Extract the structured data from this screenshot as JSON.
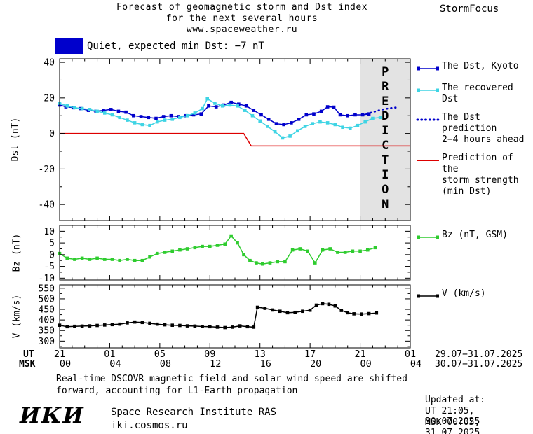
{
  "header": {
    "title_line1": "Forecast of geomagnetic storm and Dst index",
    "title_line2": "for the next several hours",
    "title_line3": "www.spaceweather.ru",
    "brand": "StormFocus"
  },
  "status": {
    "text": "Quiet, expected min Dst: −7 nT",
    "swatch_color": "#0000cc"
  },
  "chart_data": {
    "type": "line",
    "x_axis": {
      "ut_label": "UT",
      "msk_label": "MSK",
      "xlim": [
        0,
        28
      ],
      "tick_hours": [
        0,
        4,
        8,
        12,
        16,
        20,
        24,
        28
      ],
      "ut_ticks": [
        "21",
        "01",
        "05",
        "09",
        "13",
        "17",
        "21",
        "01"
      ],
      "msk_ticks": [
        "00",
        "04",
        "08",
        "12",
        "16",
        "20",
        "00",
        "04"
      ],
      "ut_date_range": "29.07−31.07.2025",
      "msk_date_range": "30.07−31.07.2025"
    },
    "panels": [
      {
        "name": "dst",
        "ylabel": "Dst (nT)",
        "ylim": [
          -49,
          42
        ],
        "yticks": [
          40,
          20,
          0,
          -20,
          -40
        ],
        "minor_step": 10,
        "band": {
          "from": 24,
          "to": 28,
          "label": "PREDICTION",
          "fill": "#e3e3e3",
          "label_color": "#bdbdbd"
        },
        "series": [
          {
            "name": "The Dst, Kyoto",
            "color": "#0000cc",
            "marker": "square",
            "line": "solid",
            "points": [
              [
                0,
                16
              ],
              [
                0.5,
                15
              ],
              [
                1.1,
                14.5
              ],
              [
                1.7,
                14
              ],
              [
                2.3,
                13
              ],
              [
                2.9,
                12.5
              ],
              [
                3.5,
                13
              ],
              [
                4.1,
                13.5
              ],
              [
                4.7,
                12.5
              ],
              [
                5.3,
                12
              ],
              [
                5.9,
                10
              ],
              [
                6.5,
                9.5
              ],
              [
                7.1,
                9
              ],
              [
                7.7,
                8.5
              ],
              [
                8.3,
                9.5
              ],
              [
                8.9,
                10
              ],
              [
                9.5,
                9.5
              ],
              [
                10.1,
                10
              ],
              [
                10.7,
                10.5
              ],
              [
                11.3,
                11
              ],
              [
                11.9,
                15.5
              ],
              [
                12.5,
                15
              ],
              [
                13.1,
                16
              ],
              [
                13.7,
                17.5
              ],
              [
                14.3,
                16.5
              ],
              [
                14.9,
                15.5
              ],
              [
                15.5,
                13
              ],
              [
                16.1,
                10.5
              ],
              [
                16.7,
                8
              ],
              [
                17.3,
                5.5
              ],
              [
                17.9,
                5
              ],
              [
                18.5,
                6
              ],
              [
                19.1,
                8
              ],
              [
                19.7,
                10.5
              ],
              [
                20.3,
                11
              ],
              [
                20.9,
                12.5
              ],
              [
                21.4,
                15
              ],
              [
                21.9,
                14.8
              ],
              [
                22.4,
                10.5
              ],
              [
                23,
                10
              ],
              [
                23.6,
                10.5
              ],
              [
                24.2,
                10.5
              ],
              [
                24.7,
                11
              ]
            ]
          },
          {
            "name": "The recovered Dst",
            "color": "#3fd4e4",
            "marker": "square",
            "line": "solid",
            "points": [
              [
                0,
                17
              ],
              [
                0.6,
                15.5
              ],
              [
                1.2,
                14.5
              ],
              [
                1.8,
                14
              ],
              [
                2.4,
                13.5
              ],
              [
                3,
                12.5
              ],
              [
                3.6,
                11.5
              ],
              [
                4.2,
                10.5
              ],
              [
                4.8,
                9
              ],
              [
                5.4,
                7.5
              ],
              [
                6,
                6
              ],
              [
                6.6,
                5
              ],
              [
                7.2,
                4.5
              ],
              [
                7.8,
                6.5
              ],
              [
                8.4,
                7.5
              ],
              [
                9,
                8
              ],
              [
                9.6,
                9
              ],
              [
                10.2,
                10
              ],
              [
                10.8,
                11.5
              ],
              [
                11.4,
                14
              ],
              [
                11.8,
                19.5
              ],
              [
                12.4,
                17
              ],
              [
                13,
                15.5
              ],
              [
                13.6,
                16
              ],
              [
                14.2,
                15.5
              ],
              [
                14.8,
                13
              ],
              [
                15.4,
                10
              ],
              [
                16,
                7
              ],
              [
                16.6,
                4
              ],
              [
                17.2,
                1
              ],
              [
                17.8,
                -2.5
              ],
              [
                18.4,
                -1.5
              ],
              [
                19,
                1.5
              ],
              [
                19.6,
                4
              ],
              [
                20.2,
                5.5
              ],
              [
                20.8,
                6.5
              ],
              [
                21.4,
                6
              ],
              [
                22,
                5
              ],
              [
                22.6,
                3.5
              ],
              [
                23.2,
                3
              ],
              [
                23.8,
                4.5
              ],
              [
                24.4,
                6.5
              ],
              [
                25,
                8.5
              ],
              [
                25.6,
                9
              ]
            ]
          },
          {
            "name": "The Dst prediction 2−4 hours ahead",
            "color": "#0000cc",
            "marker": "none",
            "line": "dotted",
            "points": [
              [
                24.5,
                11
              ],
              [
                25,
                12
              ],
              [
                25.5,
                13
              ],
              [
                26,
                13.8
              ],
              [
                26.5,
                14.3
              ],
              [
                27,
                14.7
              ]
            ]
          },
          {
            "name": "Prediction of the storm strength (min Dst)",
            "color": "#dd0000",
            "marker": "none",
            "line": "solid",
            "points": [
              [
                0,
                0
              ],
              [
                14.7,
                0
              ],
              [
                15.3,
                -7
              ],
              [
                28,
                -7
              ]
            ]
          }
        ]
      },
      {
        "name": "bz",
        "ylabel": "Bz (nT)",
        "ylim": [
          -10.8,
          12.5
        ],
        "yticks": [
          10,
          5,
          0,
          -5,
          -10
        ],
        "minor_step": 2.5,
        "series": [
          {
            "name": "Bz (nT, GSM)",
            "color": "#2ecc2e",
            "marker": "square",
            "line": "solid",
            "points": [
              [
                0,
                0.5
              ],
              [
                0.6,
                -1.5
              ],
              [
                1.2,
                -2
              ],
              [
                1.8,
                -1.5
              ],
              [
                2.4,
                -2
              ],
              [
                3,
                -1.5
              ],
              [
                3.6,
                -2
              ],
              [
                4.2,
                -2
              ],
              [
                4.8,
                -2.5
              ],
              [
                5.4,
                -2
              ],
              [
                6,
                -2.5
              ],
              [
                6.6,
                -2.5
              ],
              [
                7.2,
                -1
              ],
              [
                7.8,
                0.5
              ],
              [
                8.4,
                1
              ],
              [
                9,
                1.5
              ],
              [
                9.6,
                2
              ],
              [
                10.2,
                2.5
              ],
              [
                10.8,
                3
              ],
              [
                11.4,
                3.5
              ],
              [
                12,
                3.5
              ],
              [
                12.6,
                4
              ],
              [
                13.2,
                4.5
              ],
              [
                13.7,
                8
              ],
              [
                14.2,
                5
              ],
              [
                14.7,
                0
              ],
              [
                15.2,
                -2.5
              ],
              [
                15.7,
                -3.5
              ],
              [
                16.2,
                -4
              ],
              [
                16.8,
                -3.5
              ],
              [
                17.4,
                -3
              ],
              [
                18,
                -3
              ],
              [
                18.6,
                2
              ],
              [
                19.2,
                2.5
              ],
              [
                19.8,
                1.5
              ],
              [
                20.4,
                -3.5
              ],
              [
                21,
                2
              ],
              [
                21.6,
                2.5
              ],
              [
                22.2,
                1
              ],
              [
                22.8,
                1
              ],
              [
                23.4,
                1.5
              ],
              [
                24,
                1.5
              ],
              [
                24.6,
                2
              ],
              [
                25.2,
                3
              ]
            ]
          }
        ]
      },
      {
        "name": "v",
        "ylabel": "V (km/s)",
        "ylim": [
          268,
          566
        ],
        "yticks": [
          550,
          500,
          450,
          400,
          350,
          300
        ],
        "minor_step": 25,
        "series": [
          {
            "name": "V (km/s)",
            "color": "#000000",
            "marker": "square",
            "line": "solid",
            "points": [
              [
                0,
                375
              ],
              [
                0.6,
                368
              ],
              [
                1.2,
                370
              ],
              [
                1.8,
                371
              ],
              [
                2.4,
                372
              ],
              [
                3,
                374
              ],
              [
                3.6,
                376
              ],
              [
                4.2,
                378
              ],
              [
                4.8,
                380
              ],
              [
                5.4,
                386
              ],
              [
                6,
                390
              ],
              [
                6.6,
                388
              ],
              [
                7.2,
                384
              ],
              [
                7.8,
                380
              ],
              [
                8.4,
                377
              ],
              [
                9,
                375
              ],
              [
                9.6,
                374
              ],
              [
                10.2,
                372
              ],
              [
                10.8,
                371
              ],
              [
                11.4,
                369
              ],
              [
                12,
                368
              ],
              [
                12.6,
                366
              ],
              [
                13.2,
                364
              ],
              [
                13.8,
                366
              ],
              [
                14.4,
                372
              ],
              [
                15,
                368
              ],
              [
                15.5,
                366
              ],
              [
                15.8,
                460
              ],
              [
                16.4,
                455
              ],
              [
                17,
                447
              ],
              [
                17.6,
                441
              ],
              [
                18.2,
                434
              ],
              [
                18.8,
                436
              ],
              [
                19.4,
                441
              ],
              [
                20,
                446
              ],
              [
                20.5,
                470
              ],
              [
                21,
                477
              ],
              [
                21.5,
                474
              ],
              [
                22,
                466
              ],
              [
                22.5,
                445
              ],
              [
                23,
                434
              ],
              [
                23.5,
                429
              ],
              [
                24.1,
                428
              ],
              [
                24.7,
                430
              ],
              [
                25.3,
                433
              ]
            ]
          }
        ]
      }
    ]
  },
  "legend": {
    "dst": [
      {
        "label": "The Dst, Kyoto",
        "marker": "squares-line",
        "color": "#0000cc"
      },
      {
        "label": "The recovered Dst",
        "marker": "squares-line",
        "color": "#3fd4e4"
      },
      {
        "label": "The Dst prediction\n2−4 hours ahead",
        "marker": "dotted",
        "color": "#0000cc"
      },
      {
        "label": "Prediction of the\nstorm strength\n(min Dst)",
        "marker": "line",
        "color": "#dd0000"
      }
    ],
    "bz": [
      {
        "label": "Bz (nT, GSM)",
        "marker": "squares-line",
        "color": "#2ecc2e"
      }
    ],
    "v": [
      {
        "label": "V (km/s)",
        "marker": "squares-line",
        "color": "#000000"
      }
    ]
  },
  "footer": {
    "note_line1": "Real-time DSCOVR magnetic field and solar wind speed are shifted",
    "note_line2": "forward, accounting for L1-Earth propagation",
    "updated_label": "Updated at:",
    "updated_ut": "UT  21:05, 30.07.2025",
    "updated_msk": "MSK 00:05, 31.07.2025",
    "logo_text": "ИКИ",
    "institute": "Space Research Institute RAS",
    "website": "iki.cosmos.ru"
  }
}
